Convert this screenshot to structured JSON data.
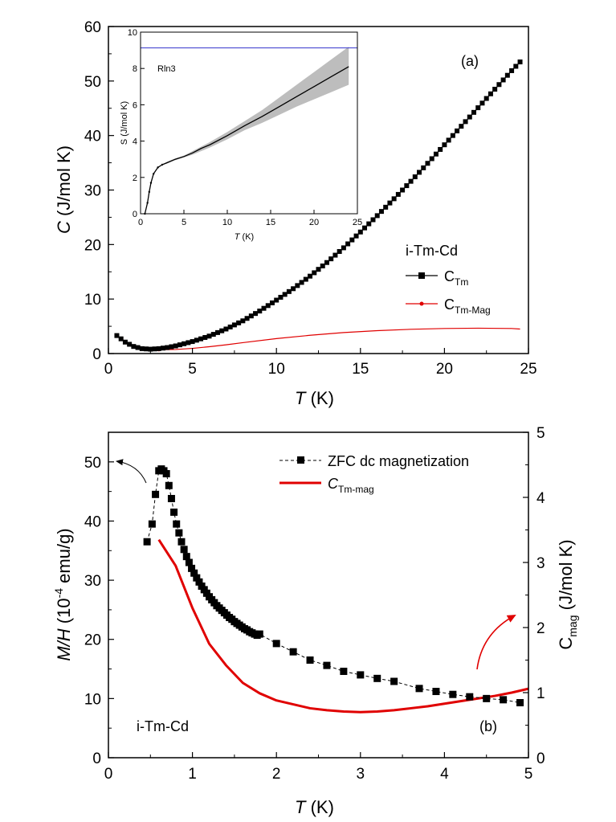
{
  "chart_data": [
    {
      "id": "a",
      "type": "line",
      "panel_label": "(a)",
      "xlabel": "T",
      "xlabel_unit": " (K)",
      "ylabel": "C",
      "ylabel_unit": " (J/mol K)",
      "xlim": [
        0,
        25
      ],
      "ylim": [
        0,
        60
      ],
      "xticks": [
        0,
        5,
        10,
        15,
        20,
        25
      ],
      "yticks": [
        0,
        10,
        20,
        30,
        40,
        50,
        60
      ],
      "legend_title": "i-Tm-Cd",
      "legend_placement": "right",
      "colors": {
        "C_Tm": "#000000",
        "C_Tm_Mag": "#e00000"
      },
      "series": [
        {
          "name": "C_Tm",
          "label_main": "C",
          "label_sub": "Tm",
          "x": [
            0.5,
            1.0,
            1.5,
            2.0,
            2.5,
            3.0,
            3.5,
            4.0,
            5.0,
            6.0,
            7.0,
            8.0,
            9.0,
            10.0,
            11.0,
            12.0,
            13.0,
            14.0,
            15.0,
            16.0,
            17.0,
            18.0,
            19.0,
            20.0,
            21.0,
            22.0,
            23.0,
            24.0,
            24.5
          ],
          "y": [
            3.3,
            2.1,
            1.3,
            0.9,
            0.8,
            0.9,
            1.1,
            1.4,
            2.2,
            3.2,
            4.5,
            6.0,
            7.8,
            9.8,
            11.9,
            14.2,
            16.7,
            19.4,
            22.3,
            25.3,
            28.4,
            31.6,
            34.9,
            38.3,
            41.7,
            45.1,
            48.5,
            51.9,
            53.5
          ]
        },
        {
          "name": "C_Tm_Mag",
          "label_main": "C",
          "label_sub": "Tm-Mag",
          "x": [
            0.5,
            1.0,
            1.5,
            2.0,
            2.5,
            3.0,
            4.0,
            5.0,
            6.0,
            7.0,
            8.0,
            10.0,
            12.0,
            14.0,
            16.0,
            18.0,
            20.0,
            22.0,
            24.0,
            24.5
          ],
          "y": [
            3.3,
            2.2,
            1.3,
            0.9,
            0.8,
            0.7,
            0.75,
            0.95,
            1.25,
            1.6,
            2.0,
            2.75,
            3.35,
            3.85,
            4.2,
            4.45,
            4.6,
            4.65,
            4.6,
            4.5
          ]
        }
      ],
      "inset": {
        "type": "line",
        "xlabel": "T",
        "xlabel_unit": " (K)",
        "ylabel": "S (J/mol K)",
        "xlim": [
          0,
          25
        ],
        "ylim": [
          0,
          10
        ],
        "xticks": [
          0,
          5,
          10,
          15,
          20,
          25
        ],
        "yticks": [
          0,
          2,
          4,
          6,
          8,
          10
        ],
        "annotation": "Rln3",
        "reference_line_y": 9.13,
        "colors": {
          "curve": "#000000",
          "band": "#bdbdbd",
          "reference": "#3333cc"
        },
        "entropy": {
          "x": [
            0.5,
            0.8,
            1.0,
            1.2,
            1.5,
            2.0,
            2.5,
            3.0,
            4.0,
            5.0,
            6.0,
            7.0,
            8.0,
            10.0,
            12.0,
            14.0,
            16.0,
            18.0,
            20.0,
            22.0,
            24.0
          ],
          "y": [
            0.0,
            0.6,
            1.2,
            1.7,
            2.2,
            2.55,
            2.7,
            2.8,
            3.0,
            3.15,
            3.35,
            3.6,
            3.8,
            4.3,
            4.85,
            5.35,
            5.9,
            6.45,
            7.0,
            7.55,
            8.1
          ],
          "band_upper": [
            0.0,
            0.6,
            1.2,
            1.7,
            2.2,
            2.55,
            2.7,
            2.85,
            3.05,
            3.2,
            3.45,
            3.7,
            3.95,
            4.5,
            5.1,
            5.7,
            6.4,
            7.1,
            7.8,
            8.5,
            9.2
          ],
          "band_lower": [
            0.0,
            0.6,
            1.2,
            1.7,
            2.2,
            2.55,
            2.7,
            2.75,
            2.95,
            3.1,
            3.25,
            3.45,
            3.65,
            4.1,
            4.6,
            5.0,
            5.45,
            5.9,
            6.3,
            6.7,
            7.1
          ]
        }
      }
    },
    {
      "id": "b",
      "type": "line",
      "panel_label": "(b)",
      "xlabel": "T",
      "xlabel_unit": " (K)",
      "ylabel_main": "M/H",
      "ylabel_unit_pre": " (10",
      "ylabel_exp": "-4",
      "ylabel_unit_post": " emu/g)",
      "y2label_main": "C",
      "y2label_sub": "mag",
      "y2label_unit": " (J/mol K)",
      "annotation": "i-Tm-Cd",
      "xlim": [
        0,
        5
      ],
      "ylim": [
        0,
        55
      ],
      "y2lim": [
        0,
        5
      ],
      "xticks": [
        0,
        1,
        2,
        3,
        4,
        5
      ],
      "yticks": [
        0,
        10,
        20,
        30,
        40,
        50
      ],
      "y2ticks": [
        0,
        1,
        2,
        3,
        4,
        5
      ],
      "legend_placement": "top-right",
      "colors": {
        "magnetization": "#000000",
        "C_Tm_mag": "#e00000",
        "arrow_right": "#e00000",
        "arrow_left": "#000000"
      },
      "series": [
        {
          "name": "ZFC dc magnetization",
          "axis": "left",
          "x": [
            0.46,
            0.52,
            0.56,
            0.6,
            0.63,
            0.66,
            0.69,
            0.72,
            0.75,
            0.78,
            0.81,
            0.84,
            0.87,
            0.9,
            0.93,
            0.96,
            0.99,
            1.02,
            1.05,
            1.08,
            1.11,
            1.14,
            1.17,
            1.2,
            1.23,
            1.26,
            1.29,
            1.32,
            1.35,
            1.38,
            1.41,
            1.44,
            1.47,
            1.5,
            1.53,
            1.56,
            1.59,
            1.62,
            1.65,
            1.68,
            1.71,
            1.74,
            1.77,
            1.8,
            2.0,
            2.2,
            2.4,
            2.6,
            2.8,
            3.0,
            3.2,
            3.4,
            3.7,
            3.9,
            4.1,
            4.3,
            4.5,
            4.7,
            4.9
          ],
          "y": [
            36.5,
            39.5,
            44.5,
            48.5,
            48.8,
            48.5,
            48.0,
            46.0,
            43.8,
            41.5,
            39.5,
            38.0,
            36.5,
            35.2,
            34.0,
            33.0,
            32.0,
            31.2,
            30.4,
            29.7,
            29.0,
            28.4,
            27.8,
            27.2,
            26.7,
            26.2,
            25.7,
            25.3,
            24.9,
            24.5,
            24.1,
            23.7,
            23.4,
            23.0,
            22.7,
            22.4,
            22.1,
            21.8,
            21.6,
            21.3,
            21.1,
            20.9,
            20.7,
            20.9,
            19.3,
            17.9,
            16.5,
            15.6,
            14.6,
            14.0,
            13.4,
            12.9,
            11.7,
            11.2,
            10.7,
            10.3,
            10.0,
            9.8,
            9.3
          ]
        },
        {
          "name": "C_Tm-mag",
          "label_main": "C",
          "label_sub": "Tm-mag",
          "axis": "right",
          "x": [
            0.6,
            0.8,
            1.0,
            1.2,
            1.4,
            1.6,
            1.8,
            2.0,
            2.2,
            2.4,
            2.6,
            2.8,
            3.0,
            3.2,
            3.4,
            3.6,
            3.8,
            4.0,
            4.2,
            4.4,
            4.6,
            4.8,
            5.0
          ],
          "y": [
            3.35,
            2.95,
            2.3,
            1.75,
            1.42,
            1.15,
            0.99,
            0.88,
            0.82,
            0.76,
            0.73,
            0.71,
            0.7,
            0.71,
            0.73,
            0.76,
            0.79,
            0.83,
            0.87,
            0.91,
            0.95,
            1.0,
            1.06
          ]
        }
      ]
    }
  ]
}
